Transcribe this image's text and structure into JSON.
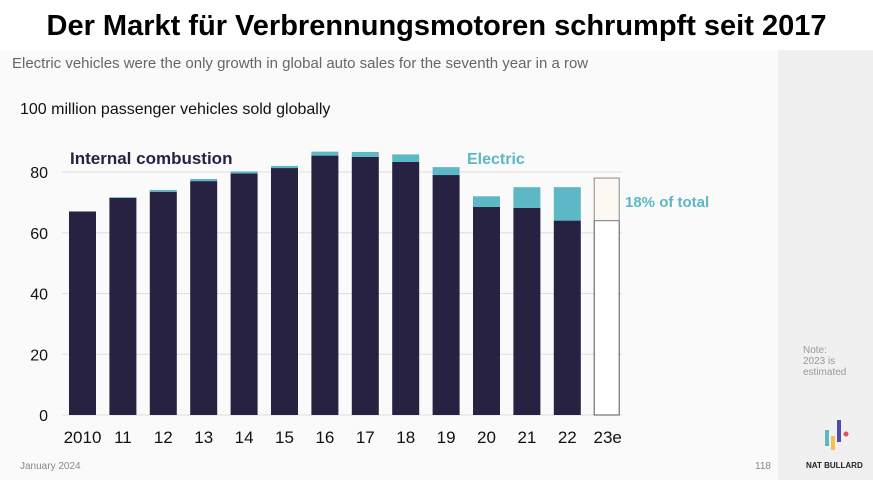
{
  "title": "Der Markt für Verbrennungsmotoren schrumpft seit 2017",
  "subtitle": "Electric vehicles were the only growth in global auto sales for the seventh year in a row",
  "footer": {
    "date": "January 2024",
    "page": "118",
    "note": [
      "Note:",
      "2023 is",
      "estimated"
    ],
    "brand": "NAT BULLARD"
  },
  "colors": {
    "combustion": "#272242",
    "electric": "#5bb8c4",
    "estimate_fill": "#fdf8f1"
  },
  "chart_data": {
    "type": "bar",
    "stacked": true,
    "ylabel": "100 million passenger vehicles sold globally",
    "categories": [
      "2010",
      "11",
      "12",
      "13",
      "14",
      "15",
      "16",
      "17",
      "18",
      "19",
      "20",
      "21",
      "22",
      "23e"
    ],
    "series": [
      {
        "name": "Internal combustion",
        "values": [
          67,
          71.5,
          73.5,
          77,
          79.5,
          81.3,
          85.4,
          85,
          83.3,
          79,
          68.5,
          68.2,
          64,
          64
        ]
      },
      {
        "name": "Electric",
        "values": [
          0,
          0.2,
          0.6,
          0.7,
          0.7,
          0.7,
          1.3,
          1.6,
          2.5,
          2.6,
          3.5,
          6.8,
          11,
          14
        ]
      }
    ],
    "annotation": "18% of total",
    "yticks": [
      0,
      20,
      40,
      60,
      80
    ],
    "ylim": [
      0,
      90
    ],
    "grid": true,
    "estimated_category": "23e"
  }
}
